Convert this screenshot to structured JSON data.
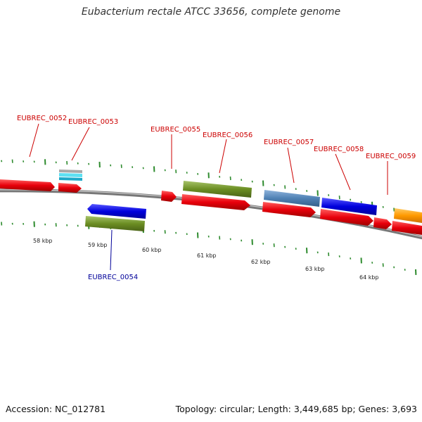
{
  "title": "Eubacterium rectale ATCC 33656, complete genome",
  "accession": "Accession: NC_012781",
  "topology": "Topology: circular; Length: 3,449,685 bp; Genes: 3,693",
  "scale_labels": [
    "58 kbp",
    "59 kbp",
    "60 kbp",
    "61 kbp",
    "62 kbp",
    "63 kbp",
    "64 kbp"
  ],
  "gene_labels": [
    {
      "id": "EUBREC_0052",
      "color": "#cc0000"
    },
    {
      "id": "EUBREC_0053",
      "color": "#cc0000"
    },
    {
      "id": "EUBREC_0055",
      "color": "#cc0000"
    },
    {
      "id": "EUBREC_0056",
      "color": "#cc0000"
    },
    {
      "id": "EUBREC_0057",
      "color": "#cc0000"
    },
    {
      "id": "EUBREC_0058",
      "color": "#cc0000"
    },
    {
      "id": "EUBREC_0059",
      "color": "#cc0000"
    },
    {
      "id": "EUBREC_0054",
      "color": "#000099"
    }
  ],
  "colors": {
    "cds": "#e8000b",
    "gene_blue": "#0000dd",
    "gene_olive": "#6b8e23",
    "gene_steel": "#4f81b4",
    "gene_cyan": "#33c6e0",
    "gene_orange": "#ff9900",
    "backbone": "#888888",
    "ticks": "#2e8b2e"
  }
}
